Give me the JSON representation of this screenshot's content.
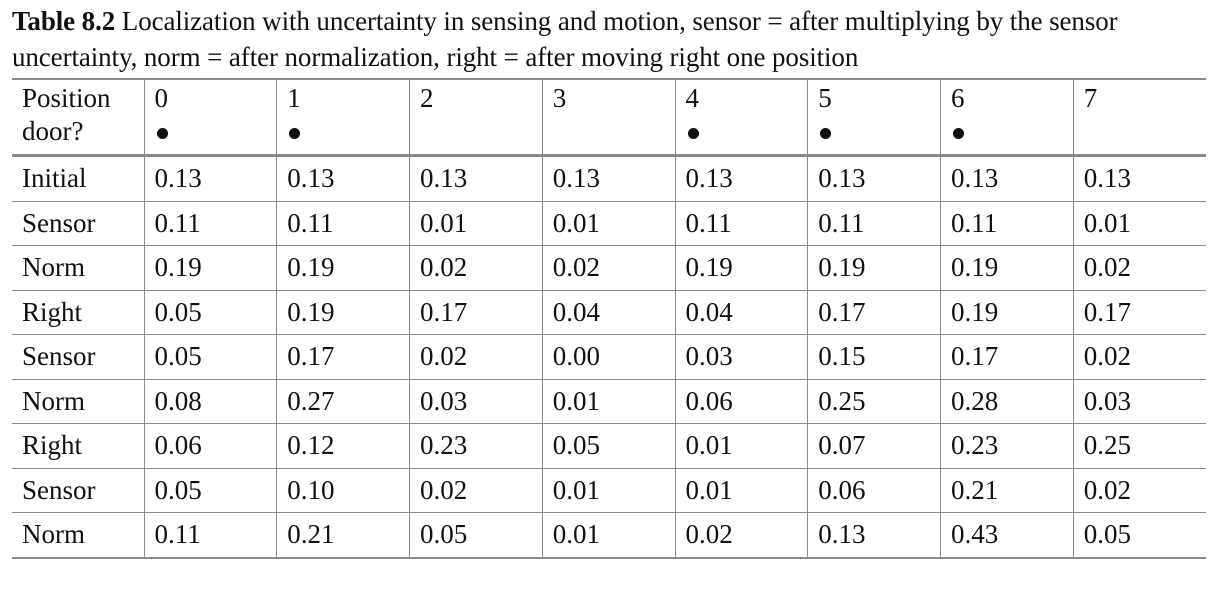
{
  "caption": {
    "label": "Table 8.2",
    "text": "Localization with uncertainty in sensing and motion, sensor = after multiplying by the sensor uncertainty, norm = after normalization, right = after moving right one position"
  },
  "table": {
    "header": {
      "position_label": "Position",
      "door_label": "door?",
      "positions": [
        "0",
        "1",
        "2",
        "3",
        "4",
        "5",
        "6",
        "7"
      ],
      "doors": [
        true,
        true,
        false,
        false,
        true,
        true,
        true,
        false
      ],
      "door_icon": "bullet-dot-icon"
    },
    "rows": [
      {
        "label": "Initial",
        "values": [
          "0.13",
          "0.13",
          "0.13",
          "0.13",
          "0.13",
          "0.13",
          "0.13",
          "0.13"
        ]
      },
      {
        "label": "Sensor",
        "values": [
          "0.11",
          "0.11",
          "0.01",
          "0.01",
          "0.11",
          "0.11",
          "0.11",
          "0.01"
        ]
      },
      {
        "label": "Norm",
        "values": [
          "0.19",
          "0.19",
          "0.02",
          "0.02",
          "0.19",
          "0.19",
          "0.19",
          "0.02"
        ]
      },
      {
        "label": "Right",
        "values": [
          "0.05",
          "0.19",
          "0.17",
          "0.04",
          "0.04",
          "0.17",
          "0.19",
          "0.17"
        ]
      },
      {
        "label": "Sensor",
        "values": [
          "0.05",
          "0.17",
          "0.02",
          "0.00",
          "0.03",
          "0.15",
          "0.17",
          "0.02"
        ]
      },
      {
        "label": "Norm",
        "values": [
          "0.08",
          "0.27",
          "0.03",
          "0.01",
          "0.06",
          "0.25",
          "0.28",
          "0.03"
        ]
      },
      {
        "label": "Right",
        "values": [
          "0.06",
          "0.12",
          "0.23",
          "0.05",
          "0.01",
          "0.07",
          "0.23",
          "0.25"
        ]
      },
      {
        "label": "Sensor",
        "values": [
          "0.05",
          "0.10",
          "0.02",
          "0.01",
          "0.01",
          "0.06",
          "0.21",
          "0.02"
        ]
      },
      {
        "label": "Norm",
        "values": [
          "0.11",
          "0.21",
          "0.05",
          "0.01",
          "0.02",
          "0.13",
          "0.43",
          "0.05"
        ]
      }
    ]
  }
}
